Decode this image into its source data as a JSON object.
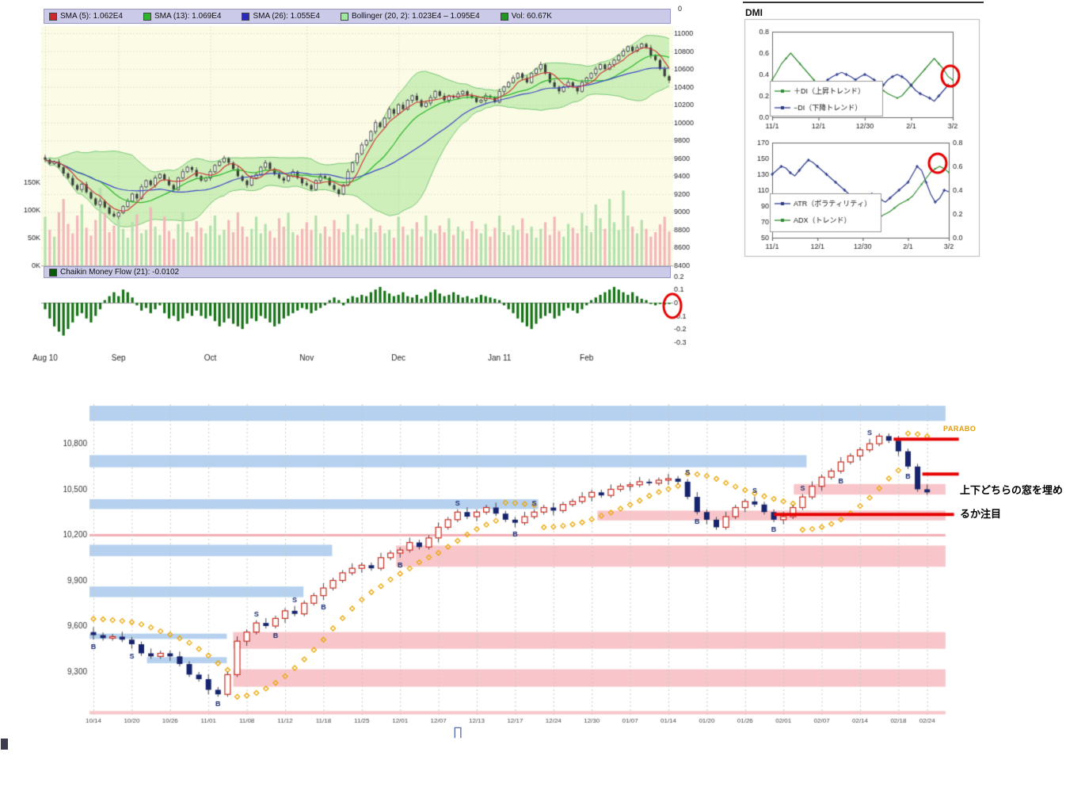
{
  "chart_data": {
    "top_chart": {
      "type": "candlestick",
      "legend": [
        {
          "label": "SMA (5): 1.062E4",
          "color": "#cc2a2a"
        },
        {
          "label": "SMA (13): 1.069E4",
          "color": "#2ab52a"
        },
        {
          "label": "SMA (26): 1.055E4",
          "color": "#2a2ac0"
        },
        {
          "label": "Bollinger (20, 2): 1.023E4 – 1.095E4",
          "color": "#9fe89f"
        },
        {
          "label": "Vol: 60.67K",
          "color": "#229622"
        }
      ],
      "chaikin_legend": {
        "label": "Chaikin Money Flow (21): -0.0102",
        "color": "#0a5a0a"
      },
      "ylim": [
        8400,
        11000
      ],
      "y_ticks": [
        11000,
        10800,
        10600,
        10400,
        10200,
        10000,
        9800,
        9600,
        9400,
        9200,
        9000,
        8800,
        8600,
        8400
      ],
      "vol_ticks": [
        "150K",
        "100K",
        "50K",
        "0K"
      ],
      "vol_tick_values": [
        150,
        100,
        50,
        0
      ],
      "chaikin_ticks": [
        "0.2",
        "0.1",
        "0",
        "-0.1",
        "-0.2",
        "-0.3"
      ],
      "chaikin_tick_values": [
        0.2,
        0.1,
        0,
        -0.1,
        -0.2,
        -0.3
      ],
      "x_labels": [
        "Aug 10",
        "Sep",
        "Oct",
        "Nov",
        "Dec",
        "Jan 11",
        "Feb"
      ],
      "x_label_idx": [
        0,
        16,
        36,
        57,
        77,
        99,
        118
      ],
      "closes": [
        9585,
        9540,
        9560,
        9500,
        9430,
        9380,
        9300,
        9250,
        9310,
        9220,
        9150,
        9080,
        9120,
        9050,
        8980,
        8950,
        8990,
        9060,
        9120,
        9200,
        9150,
        9280,
        9350,
        9300,
        9380,
        9420,
        9360,
        9300,
        9250,
        9380,
        9450,
        9500,
        9470,
        9400,
        9350,
        9380,
        9450,
        9520,
        9560,
        9600,
        9550,
        9480,
        9400,
        9350,
        9300,
        9380,
        9420,
        9500,
        9550,
        9480,
        9420,
        9380,
        9350,
        9400,
        9450,
        9380,
        9320,
        9300,
        9250,
        9350,
        9400,
        9380,
        9300,
        9250,
        9200,
        9300,
        9450,
        9550,
        9650,
        9750,
        9800,
        9900,
        10000,
        9950,
        10050,
        10150,
        10100,
        10200,
        10150,
        10250,
        10300,
        10250,
        10180,
        10220,
        10280,
        10350,
        10300,
        10250,
        10300,
        10280,
        10320,
        10350,
        10300,
        10280,
        10230,
        10250,
        10300,
        10280,
        10230,
        10350,
        10400,
        10450,
        10500,
        10550,
        10500,
        10450,
        10550,
        10600,
        10650,
        10550,
        10450,
        10400,
        10350,
        10400,
        10450,
        10400,
        10350,
        10450,
        10500,
        10550,
        10600,
        10650,
        10600,
        10650,
        10700,
        10750,
        10800,
        10850,
        10800,
        10840,
        10880,
        10840,
        10750,
        10700,
        10600,
        10520,
        10470
      ],
      "volumes": [
        88,
        64,
        52,
        96,
        120,
        75,
        58,
        90,
        110,
        68,
        54,
        82,
        140,
        95,
        60,
        72,
        85,
        66,
        50,
        78,
        92,
        58,
        64,
        105,
        70,
        55,
        88,
        62,
        48,
        75,
        96,
        60,
        52,
        80,
        68,
        58,
        72,
        90,
        55,
        64,
        82,
        60,
        96,
        70,
        52,
        66,
        88,
        58,
        75,
        62,
        50,
        85,
        70,
        95,
        60,
        55,
        66,
        78,
        64,
        90,
        58,
        70,
        52,
        82,
        66,
        60,
        92,
        55,
        75,
        48,
        68,
        85,
        60,
        72,
        58,
        64,
        50,
        88,
        70,
        55,
        66,
        78,
        52,
        90,
        64,
        58,
        72,
        60,
        85,
        55,
        70,
        62,
        48,
        80,
        66,
        58,
        75,
        52,
        68,
        90,
        60,
        55,
        72,
        64,
        85,
        58,
        70,
        50,
        66,
        78,
        55,
        88,
        62,
        52,
        75,
        68,
        58,
        95,
        72,
        60,
        110,
        85,
        66,
        120,
        78,
        64,
        135,
        90,
        70,
        58,
        82,
        66,
        52,
        60,
        74,
        88,
        61
      ],
      "chaikin": [
        -0.05,
        -0.12,
        -0.18,
        -0.22,
        -0.25,
        -0.2,
        -0.15,
        -0.1,
        -0.08,
        -0.12,
        -0.15,
        -0.1,
        -0.05,
        0.02,
        0.05,
        0.08,
        0.05,
        0.1,
        0.08,
        0.04,
        -0.02,
        -0.06,
        -0.04,
        -0.08,
        -0.05,
        -0.02,
        -0.08,
        -0.12,
        -0.1,
        -0.14,
        -0.12,
        -0.08,
        -0.1,
        -0.06,
        -0.1,
        -0.12,
        -0.1,
        -0.14,
        -0.18,
        -0.15,
        -0.12,
        -0.16,
        -0.18,
        -0.2,
        -0.16,
        -0.12,
        -0.14,
        -0.1,
        -0.12,
        -0.15,
        -0.18,
        -0.16,
        -0.12,
        -0.1,
        -0.08,
        -0.06,
        -0.04,
        -0.05,
        -0.08,
        -0.06,
        -0.04,
        -0.02,
        0.02,
        0.04,
        0.02,
        -0.02,
        0.03,
        0.05,
        0.04,
        0.06,
        0.05,
        0.08,
        0.1,
        0.12,
        0.09,
        0.07,
        0.05,
        0.06,
        0.08,
        0.05,
        0.04,
        0.06,
        0.03,
        0.05,
        0.08,
        0.1,
        0.07,
        0.05,
        0.06,
        0.08,
        0.06,
        0.04,
        0.05,
        0.03,
        0.04,
        0.06,
        0.05,
        0.04,
        0.03,
        0.02,
        -0.02,
        -0.05,
        -0.08,
        -0.12,
        -0.15,
        -0.18,
        -0.2,
        -0.16,
        -0.12,
        -0.1,
        -0.08,
        -0.12,
        -0.1,
        -0.06,
        -0.04,
        -0.06,
        -0.08,
        -0.05,
        -0.02,
        0.02,
        0.04,
        0.06,
        0.08,
        0.1,
        0.12,
        0.1,
        0.08,
        0.06,
        0.08,
        0.05,
        0.03,
        0.02,
        -0.01,
        -0.02,
        -0.01,
        -0.015,
        -0.0102
      ]
    },
    "dmi": {
      "title": "DMI",
      "x_labels": [
        "11/1",
        "12/1",
        "12/30",
        "2/1",
        "3/2"
      ],
      "x_label_idx": [
        0,
        10,
        20,
        30,
        39
      ],
      "chart1": {
        "type": "line",
        "y_ticks": [
          "0.8",
          "0.6",
          "0.4",
          "0.2",
          "0.0"
        ],
        "y_tick_values": [
          0.8,
          0.6,
          0.4,
          0.2,
          0.0
        ],
        "legend": [
          {
            "label": "＋DI（上昇トレンド）",
            "color": "#2e8b2e"
          },
          {
            "label": "−DI（下降トレンド）",
            "color": "#2b3a8c"
          }
        ],
        "plus_di": [
          0.35,
          0.42,
          0.5,
          0.55,
          0.6,
          0.55,
          0.5,
          0.45,
          0.4,
          0.35,
          0.3,
          0.28,
          0.25,
          0.22,
          0.2,
          0.18,
          0.2,
          0.22,
          0.2,
          0.18,
          0.15,
          0.18,
          0.2,
          0.22,
          0.25,
          0.22,
          0.2,
          0.18,
          0.2,
          0.25,
          0.3,
          0.35,
          0.4,
          0.45,
          0.5,
          0.55,
          0.5,
          0.45,
          0.38,
          0.35
        ],
        "minus_di": [
          0.15,
          0.12,
          0.1,
          0.12,
          0.1,
          0.12,
          0.15,
          0.18,
          0.2,
          0.22,
          0.25,
          0.3,
          0.35,
          0.38,
          0.4,
          0.42,
          0.4,
          0.38,
          0.35,
          0.38,
          0.4,
          0.38,
          0.35,
          0.32,
          0.3,
          0.35,
          0.38,
          0.4,
          0.38,
          0.35,
          0.3,
          0.25,
          0.22,
          0.2,
          0.18,
          0.15,
          0.2,
          0.25,
          0.3,
          0.28
        ]
      },
      "chart2": {
        "type": "line",
        "left_ticks": [
          "170",
          "150",
          "130",
          "110",
          "90",
          "70",
          "50"
        ],
        "left_tick_values": [
          170,
          150,
          130,
          110,
          90,
          70,
          50
        ],
        "right_ticks": [
          "0.8",
          "0.6",
          "0.4",
          "0.2",
          "0.0"
        ],
        "right_tick_values": [
          0.8,
          0.6,
          0.4,
          0.2,
          0.0
        ],
        "legend": [
          {
            "label": "ATR（ボラティリティ）",
            "color": "#2b3a8c"
          },
          {
            "label": "ADX（トレンド）",
            "color": "#2e8b2e"
          }
        ],
        "atr": [
          130,
          135,
          140,
          138,
          132,
          128,
          135,
          142,
          148,
          145,
          140,
          135,
          130,
          125,
          120,
          115,
          110,
          105,
          100,
          98,
          95,
          100,
          105,
          102,
          98,
          95,
          100,
          105,
          110,
          115,
          120,
          130,
          140,
          135,
          120,
          105,
          95,
          100,
          110,
          108
        ],
        "adx": [
          0.35,
          0.33,
          0.3,
          0.32,
          0.35,
          0.33,
          0.3,
          0.28,
          0.3,
          0.32,
          0.3,
          0.28,
          0.25,
          0.24,
          0.22,
          0.2,
          0.22,
          0.24,
          0.22,
          0.2,
          0.18,
          0.2,
          0.22,
          0.2,
          0.18,
          0.2,
          0.22,
          0.25,
          0.28,
          0.3,
          0.32,
          0.35,
          0.4,
          0.45,
          0.5,
          0.55,
          0.58,
          0.6,
          0.58,
          0.55
        ]
      }
    },
    "bottom_chart": {
      "type": "candlestick",
      "y_ticks": [
        "10,800",
        "10,500",
        "10,200",
        "9,900",
        "9,600",
        "9,300"
      ],
      "y_tick_values": [
        10800,
        10500,
        10200,
        9900,
        9600,
        9300
      ],
      "x_labels": [
        "10/14",
        "10/20",
        "10/26",
        "11/01",
        "11/08",
        "11/12",
        "11/18",
        "11/25",
        "12/01",
        "12/07",
        "12/13",
        "12/17",
        "12/24",
        "12/30",
        "01/07",
        "01/14",
        "01/20",
        "01/26",
        "02/01",
        "02/07",
        "02/14",
        "02/18",
        "02/24"
      ],
      "x_label_idx": [
        0,
        4,
        8,
        12,
        16,
        20,
        24,
        28,
        32,
        36,
        40,
        44,
        48,
        52,
        56,
        60,
        64,
        68,
        72,
        76,
        80,
        84,
        87
      ],
      "closes": [
        9540,
        9520,
        9530,
        9510,
        9480,
        9420,
        9400,
        9420,
        9400,
        9350,
        9280,
        9250,
        9180,
        9150,
        9280,
        9500,
        9560,
        9620,
        9600,
        9650,
        9700,
        9680,
        9750,
        9800,
        9850,
        9900,
        9950,
        9980,
        10000,
        9980,
        10050,
        10080,
        10100,
        10150,
        10120,
        10180,
        10250,
        10300,
        10350,
        10320,
        10350,
        10380,
        10340,
        10300,
        10280,
        10320,
        10350,
        10380,
        10360,
        10400,
        10420,
        10450,
        10480,
        10460,
        10500,
        10520,
        10530,
        10550,
        10540,
        10560,
        10570,
        10550,
        10450,
        10350,
        10300,
        10250,
        10320,
        10380,
        10420,
        10400,
        10350,
        10300,
        10320,
        10380,
        10450,
        10520,
        10580,
        10620,
        10680,
        10720,
        10760,
        10800,
        10850,
        10820,
        10750,
        10650,
        10500,
        10480
      ],
      "first_open": 9560,
      "markers": [
        [
          0,
          "B",
          "b"
        ],
        [
          4,
          "S",
          "b"
        ],
        [
          13,
          "B",
          "b"
        ],
        [
          17,
          "S",
          "a"
        ],
        [
          19,
          "B",
          "b"
        ],
        [
          21,
          "S",
          "a"
        ],
        [
          24,
          "B",
          "b"
        ],
        [
          32,
          "B",
          "b"
        ],
        [
          38,
          "S",
          "a"
        ],
        [
          44,
          "B",
          "b"
        ],
        [
          46,
          "S",
          "a"
        ],
        [
          62,
          "S",
          "a"
        ],
        [
          63,
          "B",
          "b"
        ],
        [
          69,
          "S",
          "a"
        ],
        [
          71,
          "B",
          "b"
        ],
        [
          74,
          "S",
          "a"
        ],
        [
          78,
          "B",
          "b"
        ],
        [
          81,
          "S",
          "a"
        ],
        [
          85,
          "B",
          "b"
        ]
      ],
      "bands": [
        [
          0,
          88.5,
          10950,
          11050,
          "b"
        ],
        [
          0,
          74,
          10645,
          10725,
          "b"
        ],
        [
          0,
          46,
          10370,
          10435,
          "b"
        ],
        [
          0,
          24.5,
          10060,
          10135,
          "b"
        ],
        [
          0,
          21.5,
          9790,
          9860,
          "b"
        ],
        [
          0,
          13.5,
          9515,
          9550,
          "b"
        ],
        [
          6,
          13.5,
          9355,
          9395,
          "b"
        ],
        [
          73.5,
          88.5,
          10465,
          10535,
          "p"
        ],
        [
          53,
          88.5,
          10295,
          10360,
          "p"
        ],
        [
          32,
          88.5,
          9990,
          10130,
          "p"
        ],
        [
          15,
          88.5,
          9450,
          9560,
          "p"
        ],
        [
          15,
          88.5,
          9200,
          9315,
          "p"
        ],
        [
          0,
          88.5,
          10190,
          10206,
          "t"
        ],
        [
          0,
          88.5,
          9018,
          9040,
          "p"
        ]
      ],
      "red_lines": [
        [
          83.5,
          90.3,
          10830
        ],
        [
          86.5,
          90.3,
          10600
        ],
        [
          71,
          89.8,
          10335
        ]
      ],
      "annotations": {
        "parabo": "PARABO",
        "note1": "上下どちらの窓を埋め",
        "note2": "るか注目"
      },
      "sar_color": "#eda500",
      "up_color": "#cc2a1e",
      "down_color": "#16246e"
    }
  },
  "artifacts": {
    "stray_zero": "0",
    "glyph": "∏"
  }
}
